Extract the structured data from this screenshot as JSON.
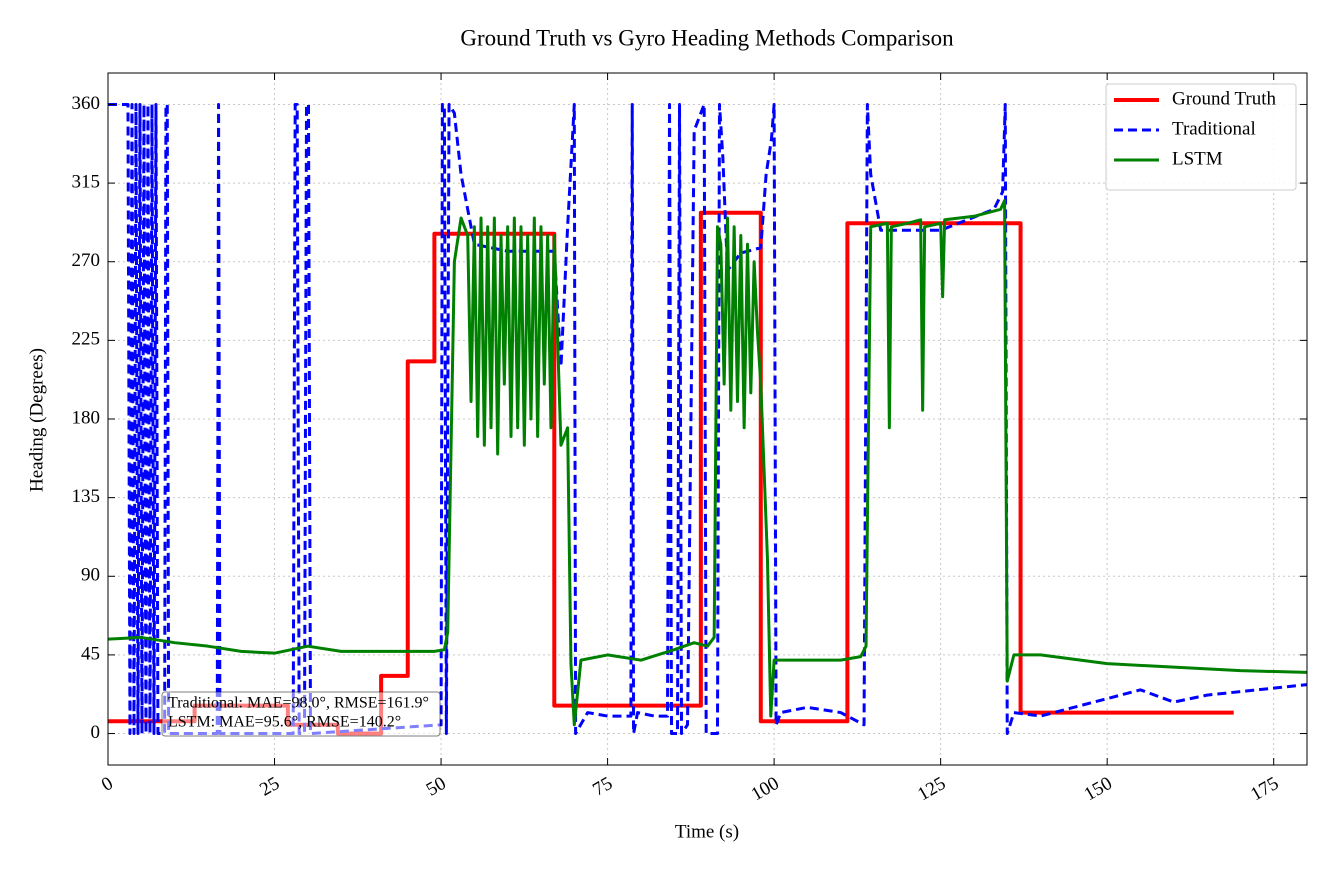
{
  "chart_data": {
    "type": "line",
    "title": "Ground Truth vs Gyro Heading Methods Comparison",
    "xlabel": "Time (s)",
    "ylabel": "Heading (Degrees)",
    "xlim": [
      0,
      180
    ],
    "ylim": [
      -18,
      378
    ],
    "xticks": [
      0,
      25,
      50,
      75,
      100,
      125,
      150,
      175
    ],
    "yticks": [
      0,
      45,
      90,
      135,
      180,
      225,
      270,
      315,
      360
    ],
    "grid": true,
    "legend": "upper right",
    "annotations": [
      "Traditional: MAE=98.0°, RMSE=161.9°",
      "LSTM: MAE=95.6°, RMSE=140.2°"
    ],
    "series": [
      {
        "name": "Ground Truth",
        "color": "#ff0000",
        "style": "solid",
        "x": [
          0,
          13,
          13,
          27,
          27,
          34.5,
          34.5,
          41,
          41,
          45,
          45,
          49,
          49,
          67,
          67,
          89,
          89,
          98,
          98,
          111,
          111,
          137,
          137,
          169
        ],
        "values": [
          7,
          7,
          16,
          16,
          5,
          5,
          0,
          0,
          33,
          33,
          213,
          213,
          286,
          286,
          16,
          16,
          298,
          298,
          7,
          7,
          292,
          292,
          12,
          12
        ]
      },
      {
        "name": "Traditional",
        "color": "#0000ff",
        "style": "dashed",
        "x": [
          0,
          3,
          3.3,
          3.6,
          3.9,
          4.2,
          4.5,
          4.8,
          5.1,
          5.4,
          5.7,
          6,
          6.3,
          6.6,
          6.9,
          7.2,
          7.5,
          8.5,
          8.7,
          8.9,
          9.1,
          16.4,
          16.6,
          16.8,
          27.8,
          28.1,
          28.4,
          28.7,
          29.5,
          29.8,
          30.1,
          30.4,
          50,
          50.2,
          50.5,
          50.8,
          51.2,
          52,
          53,
          55,
          60,
          67,
          68,
          69,
          70,
          70.2,
          72,
          75,
          78.5,
          78.7,
          78.9,
          79.5,
          82,
          84,
          84.3,
          84.6,
          85.5,
          85.8,
          86.1,
          87,
          88,
          89.5,
          89.8,
          91.5,
          91.8,
          92.3,
          93,
          95,
          98,
          98.8,
          99.6,
          100,
          100.3,
          101,
          105,
          110,
          113.5,
          114,
          114.5,
          116,
          125,
          133,
          134.3,
          134.7,
          135,
          136,
          140,
          145,
          150,
          155,
          160,
          165,
          170,
          175,
          180
        ],
        "values": [
          360,
          360,
          0,
          360,
          0,
          360,
          0,
          360,
          0,
          360,
          0,
          360,
          0,
          360,
          0,
          360,
          0,
          0,
          360,
          360,
          0,
          0,
          360,
          0,
          0,
          360,
          360,
          0,
          0,
          360,
          360,
          0,
          5,
          360,
          360,
          0,
          360,
          355,
          320,
          280,
          276,
          276,
          210,
          290,
          360,
          0,
          12,
          10,
          10,
          360,
          0,
          12,
          10,
          10,
          360,
          0,
          0,
          360,
          0,
          5,
          345,
          360,
          0,
          0,
          360,
          330,
          265,
          275,
          278,
          320,
          340,
          360,
          5,
          12,
          15,
          12,
          5,
          360,
          320,
          288,
          288,
          300,
          310,
          360,
          0,
          12,
          10,
          15,
          20,
          25,
          18,
          22,
          24,
          26,
          28
        ]
      },
      {
        "name": "LSTM",
        "color": "#008000",
        "style": "solid",
        "x": [
          0,
          5,
          10,
          15,
          20,
          25,
          30,
          35,
          40,
          45,
          49,
          50.5,
          51,
          52,
          53,
          54,
          54.5,
          55,
          55.5,
          56,
          56.5,
          57,
          57.5,
          58,
          58.5,
          59,
          59.5,
          60,
          60.5,
          61,
          61.5,
          62,
          62.5,
          63,
          63.5,
          64,
          64.5,
          65,
          65.5,
          66,
          66.5,
          67,
          68,
          69,
          69.5,
          70,
          71,
          75,
          80,
          85,
          88,
          90,
          91,
          91.5,
          92,
          92.5,
          93,
          93.5,
          94,
          94.5,
          95,
          95.5,
          96,
          96.5,
          97,
          97.5,
          98,
          99,
          99.5,
          100,
          105,
          110,
          113,
          113.8,
          114.5,
          117,
          117.3,
          117.6,
          120,
          122,
          122.3,
          122.6,
          125,
          125.3,
          125.6,
          130,
          134,
          134.6,
          135,
          136,
          140,
          150,
          160,
          170,
          180
        ],
        "values": [
          54,
          55,
          52,
          50,
          47,
          46,
          50,
          47,
          47,
          47,
          47,
          48,
          58,
          270,
          295,
          285,
          190,
          290,
          170,
          295,
          165,
          290,
          175,
          295,
          160,
          285,
          200,
          290,
          170,
          295,
          175,
          290,
          165,
          285,
          180,
          295,
          170,
          290,
          200,
          285,
          175,
          285,
          165,
          175,
          40,
          5,
          42,
          45,
          42,
          48,
          52,
          50,
          55,
          290,
          280,
          200,
          295,
          185,
          290,
          190,
          285,
          175,
          280,
          195,
          270,
          230,
          200,
          100,
          10,
          42,
          42,
          42,
          44,
          50,
          290,
          292,
          175,
          290,
          292,
          294,
          185,
          290,
          292,
          250,
          294,
          296,
          300,
          305,
          30,
          45,
          45,
          40,
          38,
          36,
          35
        ]
      }
    ]
  }
}
